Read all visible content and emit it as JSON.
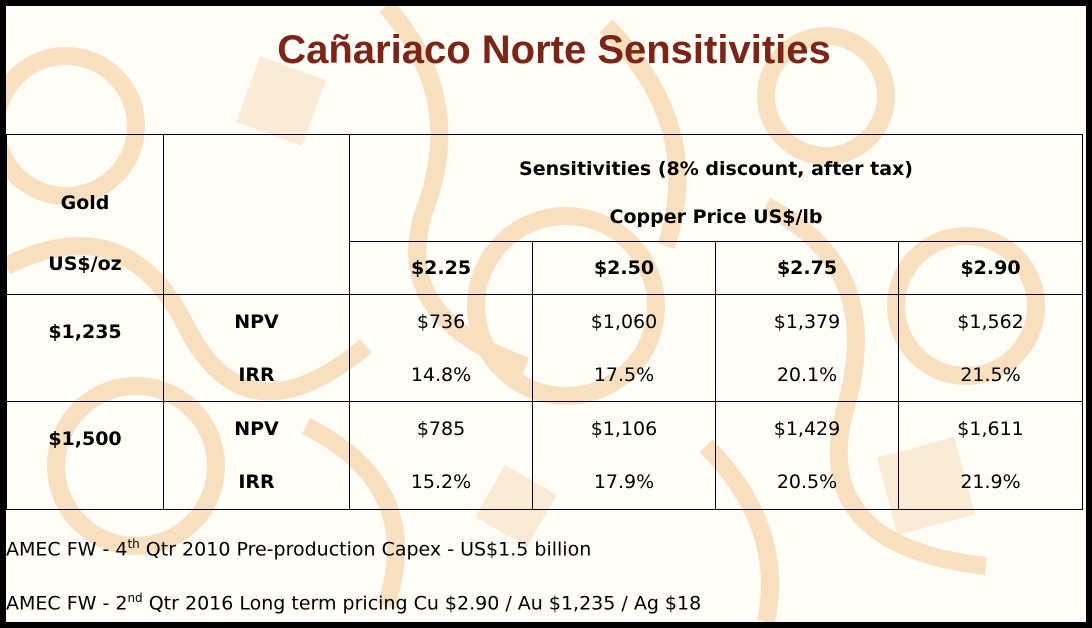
{
  "title": "Cañariaco Norte Sensitivities",
  "table": {
    "gold_label": "Gold",
    "gold_unit": "US$/oz",
    "sensitivity_label": "Sensitivities (8% discount, after tax)",
    "copper_label": "Copper Price US$/lb",
    "copper_prices": [
      "$2.25",
      "$2.50",
      "$2.75",
      "$2.90"
    ],
    "metric_labels": {
      "npv": "NPV",
      "irr": "IRR"
    },
    "rows": [
      {
        "gold": "$1,235",
        "npv": [
          "$736",
          "$1,060",
          "$1,379",
          "$1,562"
        ],
        "irr": [
          "14.8%",
          "17.5%",
          "20.1%",
          "21.5%"
        ]
      },
      {
        "gold": "$1,500",
        "npv": [
          "$785",
          "$1,106",
          "$1,429",
          "$1,611"
        ],
        "irr": [
          "15.2%",
          "17.9%",
          "20.5%",
          "21.9%"
        ]
      }
    ]
  },
  "notes": [
    {
      "prefix": "AMEC FW  - 4",
      "sup": "th",
      "suffix": " Qtr 2010 Pre-production Capex  - US$1.5 billion"
    },
    {
      "prefix": "AMEC FW  - 2",
      "sup": "nd",
      "suffix": " Qtr 2016 Long term pricing Cu $2.90 / Au $1,235 / Ag $18"
    }
  ],
  "colors": {
    "title": "#7a2518",
    "watermark": "#f3c892",
    "frame": "#000000"
  }
}
